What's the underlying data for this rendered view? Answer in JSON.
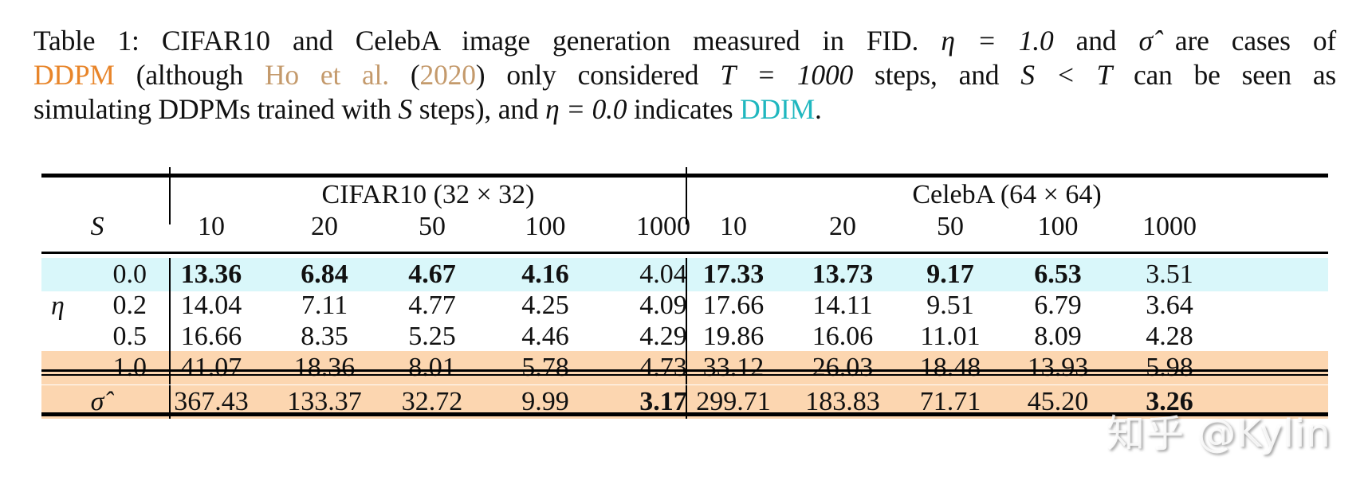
{
  "caption": {
    "label": "Table 1:",
    "text_1": "CIFAR10 and CelebA image generation measured in FID.",
    "eta_eq_1": "η = 1.0",
    "and_sigma": "and",
    "sigma_hat": "σ̂",
    "are_cases_of": "are cases of",
    "ddpm_link": "DDPM",
    "although": "(although",
    "ho_link": "Ho et al.",
    "year_open": "(",
    "year_link": "2020",
    "year_close": ")",
    "only_considered": "only considered",
    "T_eq": "T = 1000",
    "steps_and": "steps, and",
    "S_lt_T": "S < T",
    "can_be_seen_as": "can be seen as",
    "simulating": "simulating DDPMs trained with",
    "S": "S",
    "steps_and2": "steps), and",
    "eta_eq_0": "η = 0.0",
    "indicates": "indicates",
    "ddim_link": "DDIM",
    "period": "."
  },
  "colors": {
    "ddpm": "#e8852a",
    "ho_citation": "#c49a6c",
    "ddim": "#1fb7bf",
    "ddim_row_bg": "#d9f7fa",
    "ddpm_row_bg": "#fcd6b0"
  },
  "table": {
    "row_header_label": "S",
    "eta_symbol": "η",
    "groups": [
      {
        "name": "CIFAR10 (32 × 32)",
        "steps": [
          "10",
          "20",
          "50",
          "100",
          "1000"
        ]
      },
      {
        "name": "CelebA (64 × 64)",
        "steps": [
          "10",
          "20",
          "50",
          "100",
          "1000"
        ]
      }
    ],
    "rows": [
      {
        "label": "0.0",
        "highlight": "ddim",
        "cifar": [
          "13.36",
          "6.84",
          "4.67",
          "4.16",
          "4.04"
        ],
        "cifar_bold": [
          true,
          true,
          true,
          true,
          false
        ],
        "celeba": [
          "17.33",
          "13.73",
          "9.17",
          "6.53",
          "3.51"
        ],
        "celeba_bold": [
          true,
          true,
          true,
          true,
          false
        ]
      },
      {
        "label": "0.2",
        "highlight": "none",
        "cifar": [
          "14.04",
          "7.11",
          "4.77",
          "4.25",
          "4.09"
        ],
        "cifar_bold": [
          false,
          false,
          false,
          false,
          false
        ],
        "celeba": [
          "17.66",
          "14.11",
          "9.51",
          "6.79",
          "3.64"
        ],
        "celeba_bold": [
          false,
          false,
          false,
          false,
          false
        ]
      },
      {
        "label": "0.5",
        "highlight": "none",
        "cifar": [
          "16.66",
          "8.35",
          "5.25",
          "4.46",
          "4.29"
        ],
        "cifar_bold": [
          false,
          false,
          false,
          false,
          false
        ],
        "celeba": [
          "19.86",
          "16.06",
          "11.01",
          "8.09",
          "4.28"
        ],
        "celeba_bold": [
          false,
          false,
          false,
          false,
          false
        ]
      },
      {
        "label": "1.0",
        "highlight": "ddpm",
        "cifar": [
          "41.07",
          "18.36",
          "8.01",
          "5.78",
          "4.73"
        ],
        "cifar_bold": [
          false,
          false,
          false,
          false,
          false
        ],
        "celeba": [
          "33.12",
          "26.03",
          "18.48",
          "13.93",
          "5.98"
        ],
        "celeba_bold": [
          false,
          false,
          false,
          false,
          false
        ]
      },
      {
        "label": "σ̂",
        "highlight": "ddpm",
        "cifar": [
          "367.43",
          "133.37",
          "32.72",
          "9.99",
          "3.17"
        ],
        "cifar_bold": [
          false,
          false,
          false,
          false,
          true
        ],
        "celeba": [
          "299.71",
          "183.83",
          "71.71",
          "45.20",
          "3.26"
        ],
        "celeba_bold": [
          false,
          false,
          false,
          false,
          true
        ]
      }
    ]
  },
  "watermark": "知乎 @Kylin"
}
